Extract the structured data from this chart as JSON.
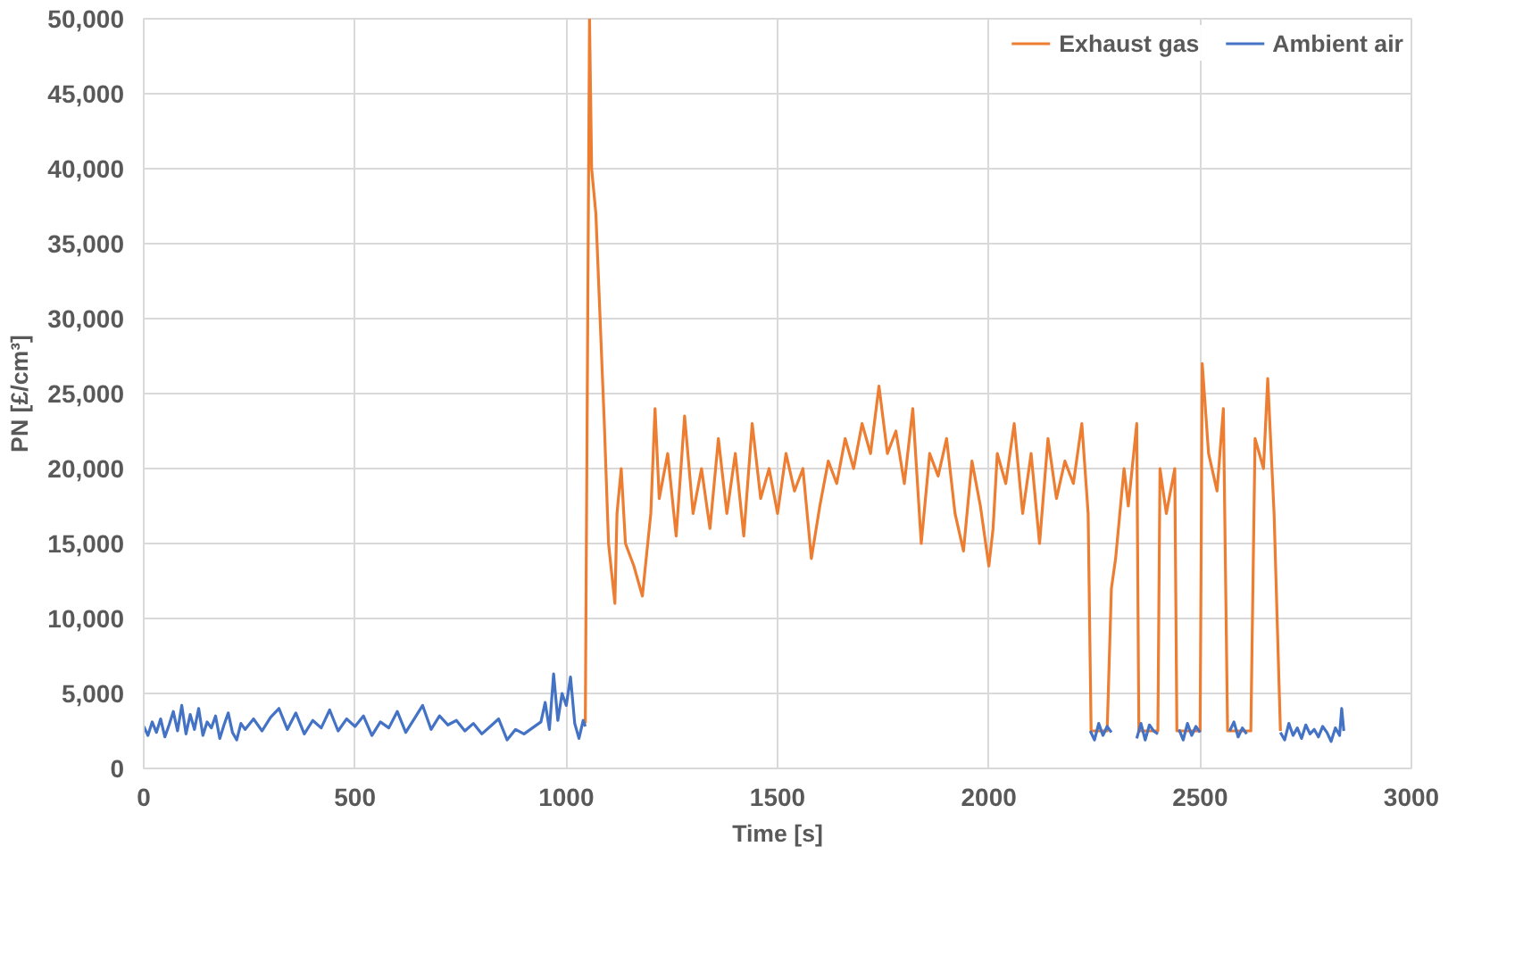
{
  "chart_data": {
    "type": "line",
    "xlabel": "Time [s]",
    "ylabel": "PN [£/cm³]",
    "xlim": [
      0,
      3000
    ],
    "xticks": [
      0,
      500,
      1000,
      1500,
      2000,
      2500,
      3000
    ],
    "ylim": [
      0,
      50000
    ],
    "yticks": [
      {
        "value": 0,
        "label": "0"
      },
      {
        "value": 5000,
        "label": "5,000"
      },
      {
        "value": 10000,
        "label": "10,000"
      },
      {
        "value": 15000,
        "label": "15,000"
      },
      {
        "value": 20000,
        "label": "20,000"
      },
      {
        "value": 25000,
        "label": "25,000"
      },
      {
        "value": 30000,
        "label": "30,000"
      },
      {
        "value": 35000,
        "label": "35,000"
      },
      {
        "value": 40000,
        "label": "40,000"
      },
      {
        "value": 45000,
        "label": "45,000"
      },
      {
        "value": 50000,
        "label": "50,000"
      }
    ],
    "grid": true,
    "legend": "top right",
    "marker": "none",
    "line_style": "solid",
    "series": [
      {
        "name": "Exhaust gas",
        "color": "#ed7d31",
        "x": [
          1045,
          1055,
          1060,
          1070,
          1080,
          1090,
          1100,
          1115,
          1120,
          1130,
          1140,
          1160,
          1180,
          1200,
          1210,
          1220,
          1240,
          1260,
          1280,
          1300,
          1320,
          1340,
          1360,
          1380,
          1400,
          1420,
          1440,
          1460,
          1480,
          1500,
          1520,
          1540,
          1560,
          1580,
          1600,
          1620,
          1640,
          1660,
          1680,
          1700,
          1720,
          1740,
          1760,
          1780,
          1800,
          1820,
          1840,
          1860,
          1880,
          1900,
          1920,
          1940,
          1960,
          1980,
          2000,
          2010,
          2020,
          2040,
          2060,
          2080,
          2100,
          2120,
          2140,
          2160,
          2180,
          2200,
          2220,
          2235,
          2242,
          2280,
          2290,
          2300,
          2320,
          2330,
          2350,
          2355,
          2400,
          2405,
          2420,
          2440,
          2445,
          2500,
          2505,
          2520,
          2540,
          2555,
          2565,
          2620,
          2630,
          2650,
          2660,
          2675,
          2690
        ],
        "values": [
          3000,
          50000,
          40000,
          37000,
          30000,
          23000,
          15000,
          11000,
          17000,
          20000,
          15000,
          13500,
          11500,
          17000,
          24000,
          18000,
          21000,
          15500,
          23500,
          17000,
          20000,
          16000,
          22000,
          17000,
          21000,
          15500,
          23000,
          18000,
          20000,
          17000,
          21000,
          18500,
          20000,
          14000,
          17500,
          20500,
          19000,
          22000,
          20000,
          23000,
          21000,
          25500,
          21000,
          22500,
          19000,
          24000,
          15000,
          21000,
          19500,
          22000,
          17000,
          14500,
          20500,
          17500,
          13500,
          16000,
          21000,
          19000,
          23000,
          17000,
          21000,
          15000,
          22000,
          18000,
          20500,
          19000,
          23000,
          17000,
          2500,
          2500,
          12000,
          14000,
          20000,
          17500,
          23000,
          2500,
          2500,
          20000,
          17000,
          20000,
          2500,
          2500,
          27000,
          21000,
          18500,
          24000,
          2500,
          2500,
          22000,
          20000,
          26000,
          17000,
          2500
        ]
      },
      {
        "name": "Ambient air",
        "color": "#4472c4",
        "x": [
          0,
          10,
          20,
          30,
          40,
          50,
          60,
          70,
          80,
          90,
          100,
          110,
          120,
          130,
          140,
          150,
          160,
          170,
          180,
          190,
          200,
          210,
          220,
          230,
          240,
          260,
          280,
          300,
          320,
          340,
          360,
          380,
          400,
          420,
          440,
          460,
          480,
          500,
          520,
          540,
          560,
          580,
          600,
          620,
          640,
          660,
          680,
          700,
          720,
          740,
          760,
          780,
          800,
          820,
          840,
          860,
          880,
          900,
          920,
          940,
          950,
          960,
          970,
          980,
          990,
          1000,
          1010,
          1020,
          1030,
          1040,
          1045,
          1100,
          2240,
          2250,
          2260,
          2270,
          2280,
          2290,
          2320,
          2350,
          2360,
          2370,
          2380,
          2390,
          2400,
          2420,
          2450,
          2460,
          2470,
          2480,
          2490,
          2500,
          2540,
          2570,
          2580,
          2590,
          2600,
          2610,
          2650,
          2690,
          2700,
          2710,
          2720,
          2730,
          2740,
          2750,
          2760,
          2770,
          2780,
          2790,
          2800,
          2810,
          2820,
          2830,
          2835,
          2840
        ],
        "values": [
          2800,
          2200,
          3100,
          2400,
          3300,
          2100,
          2900,
          3800,
          2500,
          4200,
          2300,
          3600,
          2600,
          4000,
          2200,
          3100,
          2700,
          3500,
          2000,
          2900,
          3700,
          2400,
          1900,
          3000,
          2600,
          3300,
          2500,
          3400,
          4000,
          2600,
          3700,
          2300,
          3200,
          2700,
          3900,
          2500,
          3300,
          2800,
          3500,
          2200,
          3100,
          2700,
          3800,
          2400,
          3300,
          4200,
          2600,
          3500,
          2900,
          3200,
          2500,
          3000,
          2300,
          2800,
          3300,
          1900,
          2600,
          2300,
          2700,
          3100,
          4400,
          2600,
          6300,
          3200,
          5000,
          4200,
          6100,
          3000,
          2000,
          3200,
          2800,
          null,
          2500,
          1900,
          3000,
          2200,
          2800,
          2400,
          null,
          2000,
          3000,
          1900,
          2900,
          2500,
          2300,
          null,
          2600,
          1900,
          3000,
          2200,
          2800,
          2400,
          null,
          2500,
          3100,
          2100,
          2700,
          2300,
          null,
          2400,
          1900,
          3000,
          2200,
          2700,
          2000,
          2900,
          2300,
          2600,
          2100,
          2800,
          2400,
          1800,
          2700,
          2200,
          4000,
          2500
        ]
      }
    ]
  }
}
